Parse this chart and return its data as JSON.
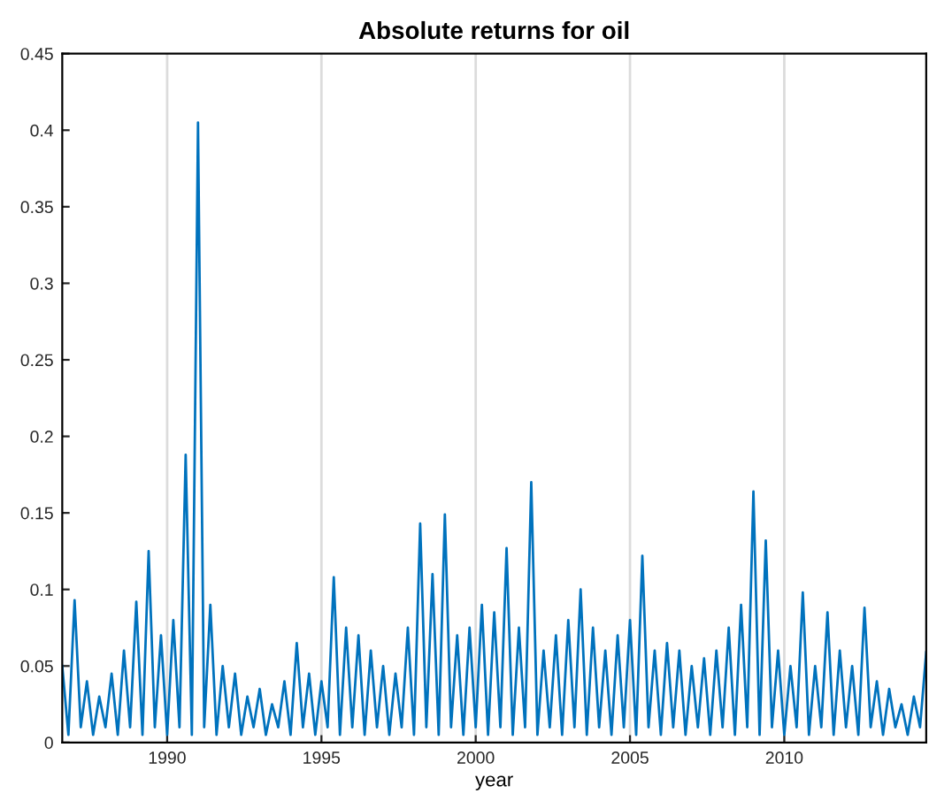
{
  "chart_data": {
    "type": "line",
    "title": "Absolute returns for oil",
    "xlabel": "year",
    "x": [
      1986.6,
      1986.8,
      1987.0,
      1987.2,
      1987.4,
      1987.6,
      1987.8,
      1988.0,
      1988.2,
      1988.4,
      1988.6,
      1988.8,
      1989.0,
      1989.2,
      1989.4,
      1989.6,
      1989.8,
      1990.0,
      1990.2,
      1990.4,
      1990.6,
      1990.8,
      1991.0,
      1991.2,
      1991.4,
      1991.6,
      1991.8,
      1992.0,
      1992.2,
      1992.4,
      1992.6,
      1992.8,
      1993.0,
      1993.2,
      1993.4,
      1993.6,
      1993.8,
      1994.0,
      1994.2,
      1994.4,
      1994.6,
      1994.8,
      1995.0,
      1995.2,
      1995.4,
      1995.6,
      1995.8,
      1996.0,
      1996.2,
      1996.4,
      1996.6,
      1996.8,
      1997.0,
      1997.2,
      1997.4,
      1997.6,
      1997.8,
      1998.0,
      1998.2,
      1998.4,
      1998.6,
      1998.8,
      1999.0,
      1999.2,
      1999.4,
      1999.6,
      1999.8,
      2000.0,
      2000.2,
      2000.4,
      2000.6,
      2000.8,
      2001.0,
      2001.2,
      2001.4,
      2001.6,
      2001.8,
      2002.0,
      2002.2,
      2002.4,
      2002.6,
      2002.8,
      2003.0,
      2003.2,
      2003.4,
      2003.6,
      2003.8,
      2004.0,
      2004.2,
      2004.4,
      2004.6,
      2004.8,
      2005.0,
      2005.2,
      2005.4,
      2005.6,
      2005.8,
      2006.0,
      2006.2,
      2006.4,
      2006.6,
      2006.8,
      2007.0,
      2007.2,
      2007.4,
      2007.6,
      2007.8,
      2008.0,
      2008.2,
      2008.4,
      2008.6,
      2008.8,
      2009.0,
      2009.2,
      2009.4,
      2009.6,
      2009.8,
      2010.0,
      2010.2,
      2010.4,
      2010.6,
      2010.8,
      2011.0,
      2011.2,
      2011.4,
      2011.6,
      2011.8,
      2012.0,
      2012.2,
      2012.4,
      2012.6,
      2012.8,
      2013.0,
      2013.2,
      2013.4,
      2013.6,
      2013.8,
      2014.0,
      2014.2,
      2014.4,
      2014.6
    ],
    "values": [
      0.05,
      0.005,
      0.093,
      0.01,
      0.04,
      0.005,
      0.03,
      0.01,
      0.045,
      0.005,
      0.06,
      0.01,
      0.092,
      0.005,
      0.125,
      0.01,
      0.07,
      0.005,
      0.08,
      0.01,
      0.188,
      0.005,
      0.405,
      0.01,
      0.09,
      0.005,
      0.05,
      0.01,
      0.045,
      0.005,
      0.03,
      0.01,
      0.035,
      0.005,
      0.025,
      0.01,
      0.04,
      0.005,
      0.065,
      0.01,
      0.045,
      0.005,
      0.04,
      0.01,
      0.108,
      0.005,
      0.075,
      0.01,
      0.07,
      0.005,
      0.06,
      0.01,
      0.05,
      0.005,
      0.045,
      0.01,
      0.075,
      0.005,
      0.143,
      0.01,
      0.11,
      0.005,
      0.149,
      0.01,
      0.07,
      0.005,
      0.075,
      0.01,
      0.09,
      0.005,
      0.085,
      0.01,
      0.127,
      0.005,
      0.075,
      0.01,
      0.17,
      0.005,
      0.06,
      0.01,
      0.07,
      0.005,
      0.08,
      0.01,
      0.1,
      0.005,
      0.075,
      0.01,
      0.06,
      0.005,
      0.07,
      0.01,
      0.08,
      0.005,
      0.122,
      0.01,
      0.06,
      0.005,
      0.065,
      0.01,
      0.06,
      0.005,
      0.05,
      0.01,
      0.055,
      0.005,
      0.06,
      0.01,
      0.075,
      0.005,
      0.09,
      0.01,
      0.164,
      0.005,
      0.132,
      0.01,
      0.06,
      0.005,
      0.05,
      0.01,
      0.098,
      0.005,
      0.05,
      0.01,
      0.085,
      0.005,
      0.06,
      0.01,
      0.05,
      0.005,
      0.088,
      0.01,
      0.04,
      0.005,
      0.035,
      0.01,
      0.025,
      0.005,
      0.03,
      0.01,
      0.059
    ],
    "color": "#0072bd",
    "xlim": [
      1986.6,
      2014.6
    ],
    "xticks": [
      1990,
      1995,
      2000,
      2005,
      2010
    ],
    "ylim": [
      0,
      0.45
    ],
    "yticks": [
      0,
      0.05,
      0.1,
      0.15,
      0.2,
      0.25,
      0.3,
      0.35,
      0.4,
      0.45
    ],
    "grid": "x",
    "legend": false
  }
}
